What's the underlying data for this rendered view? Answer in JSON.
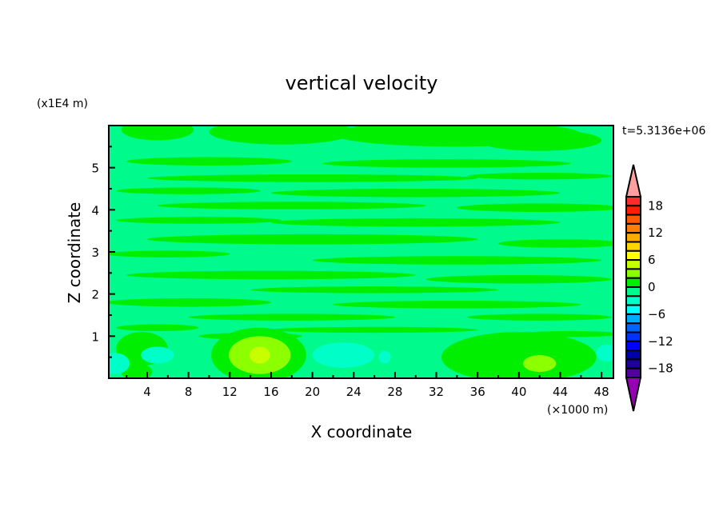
{
  "chart_data": {
    "type": "heatmap",
    "title": "vertical velocity",
    "xlabel": "X coordinate",
    "ylabel": "Z coordinate",
    "x_unit": "(×1000 m)",
    "y_unit": "(x1E4 m)",
    "time_label": "t=5.3136e+06",
    "xlim": [
      0.28,
      49.15
    ],
    "ylim": [
      0,
      6
    ],
    "x_ticks": [
      4,
      8,
      12,
      16,
      20,
      24,
      28,
      32,
      36,
      40,
      44,
      48
    ],
    "y_ticks": [
      1,
      2,
      3,
      4,
      5
    ],
    "background_value": -1,
    "colorbar": {
      "levels": [
        -20,
        -18,
        -16,
        -14,
        -12,
        -10,
        -8,
        -6,
        -4,
        -2,
        0,
        2,
        4,
        6,
        8,
        10,
        12,
        14,
        16,
        18,
        20
      ],
      "labels": [
        "18",
        "12",
        "6",
        "0",
        "-6",
        "-12",
        "-18"
      ],
      "label_values": [
        18,
        12,
        6,
        0,
        -6,
        -12,
        -18
      ],
      "colors": [
        "#9600b4",
        "#5000a0",
        "#1e00a0",
        "#0000aa",
        "#0000ff",
        "#0032ff",
        "#0064ff",
        "#00aaff",
        "#00ffff",
        "#00ffc8",
        "#00fa8c",
        "#00ee00",
        "#8cff00",
        "#c8ff00",
        "#ffff00",
        "#ffd700",
        "#ffaa00",
        "#ff7f00",
        "#ff5a00",
        "#ff1e00",
        "#ff2a2a",
        "#ffa0a0"
      ]
    },
    "features": [
      {
        "x": 5,
        "y": 5.9,
        "rx": 3.5,
        "ry": 0.25,
        "v": 1
      },
      {
        "x": 17,
        "y": 5.85,
        "rx": 7,
        "ry": 0.3,
        "v": 1
      },
      {
        "x": 34,
        "y": 5.8,
        "rx": 12,
        "ry": 0.3,
        "v": 1
      },
      {
        "x": 42,
        "y": 5.65,
        "rx": 6,
        "ry": 0.25,
        "v": 1
      },
      {
        "x": 10,
        "y": 5.15,
        "rx": 8,
        "ry": 0.1,
        "v": 1
      },
      {
        "x": 33,
        "y": 5.1,
        "rx": 12,
        "ry": 0.1,
        "v": 1
      },
      {
        "x": 20,
        "y": 4.75,
        "rx": 16,
        "ry": 0.09,
        "v": 1
      },
      {
        "x": 42,
        "y": 4.8,
        "rx": 7,
        "ry": 0.08,
        "v": 1
      },
      {
        "x": 8,
        "y": 4.45,
        "rx": 7,
        "ry": 0.08,
        "v": 1
      },
      {
        "x": 30,
        "y": 4.4,
        "rx": 14,
        "ry": 0.1,
        "v": 1
      },
      {
        "x": 18,
        "y": 4.1,
        "rx": 13,
        "ry": 0.09,
        "v": 1
      },
      {
        "x": 42,
        "y": 4.05,
        "rx": 8,
        "ry": 0.1,
        "v": 1
      },
      {
        "x": 9,
        "y": 3.75,
        "rx": 8,
        "ry": 0.08,
        "v": 1
      },
      {
        "x": 30,
        "y": 3.7,
        "rx": 14,
        "ry": 0.1,
        "v": 1
      },
      {
        "x": 20,
        "y": 3.3,
        "rx": 16,
        "ry": 0.12,
        "v": 1
      },
      {
        "x": 44,
        "y": 3.2,
        "rx": 6,
        "ry": 0.1,
        "v": 1
      },
      {
        "x": 6,
        "y": 2.95,
        "rx": 6,
        "ry": 0.08,
        "v": 1
      },
      {
        "x": 34,
        "y": 2.8,
        "rx": 14,
        "ry": 0.1,
        "v": 1
      },
      {
        "x": 16,
        "y": 2.45,
        "rx": 14,
        "ry": 0.1,
        "v": 1
      },
      {
        "x": 40,
        "y": 2.35,
        "rx": 9,
        "ry": 0.1,
        "v": 1
      },
      {
        "x": 26,
        "y": 2.1,
        "rx": 12,
        "ry": 0.08,
        "v": 1
      },
      {
        "x": 8,
        "y": 1.8,
        "rx": 8,
        "ry": 0.1,
        "v": 1
      },
      {
        "x": 34,
        "y": 1.75,
        "rx": 12,
        "ry": 0.09,
        "v": 1
      },
      {
        "x": 18,
        "y": 1.45,
        "rx": 10,
        "ry": 0.08,
        "v": 1
      },
      {
        "x": 42,
        "y": 1.45,
        "rx": 7,
        "ry": 0.08,
        "v": 1
      },
      {
        "x": 5,
        "y": 1.2,
        "rx": 4,
        "ry": 0.08,
        "v": 1
      },
      {
        "x": 26,
        "y": 1.15,
        "rx": 10,
        "ry": 0.07,
        "v": 1
      },
      {
        "x": 14,
        "y": 1.0,
        "rx": 5,
        "ry": 0.08,
        "v": 1
      },
      {
        "x": 45,
        "y": 1.05,
        "rx": 5,
        "ry": 0.07,
        "v": 1
      },
      {
        "x": 3.5,
        "y": 0.7,
        "rx": 2.5,
        "ry": 0.4,
        "v": 1
      },
      {
        "x": 3,
        "y": 0.15,
        "rx": 1.5,
        "ry": 0.2,
        "v": 1
      },
      {
        "x": 14.8,
        "y": 0.55,
        "rx": 4.6,
        "ry": 0.65,
        "v": 1
      },
      {
        "x": 40,
        "y": 0.5,
        "rx": 7.5,
        "ry": 0.6,
        "v": 1
      },
      {
        "x": 5,
        "y": 0.55,
        "rx": 1.6,
        "ry": 0.2,
        "v": -3
      },
      {
        "x": 0.9,
        "y": 0.35,
        "rx": 1.4,
        "ry": 0.25,
        "v": -3
      },
      {
        "x": 23,
        "y": 0.55,
        "rx": 3,
        "ry": 0.3,
        "v": -3
      },
      {
        "x": 48.5,
        "y": 0.6,
        "rx": 1,
        "ry": 0.2,
        "v": -3
      },
      {
        "x": 27,
        "y": 0.5,
        "rx": 0.6,
        "ry": 0.15,
        "v": -3
      },
      {
        "x": 14.9,
        "y": 0.55,
        "rx": 3,
        "ry": 0.45,
        "v": 3
      },
      {
        "x": 42,
        "y": 0.35,
        "rx": 1.6,
        "ry": 0.2,
        "v": 3
      },
      {
        "x": 14.9,
        "y": 0.55,
        "rx": 1,
        "ry": 0.2,
        "v": 5
      }
    ]
  }
}
